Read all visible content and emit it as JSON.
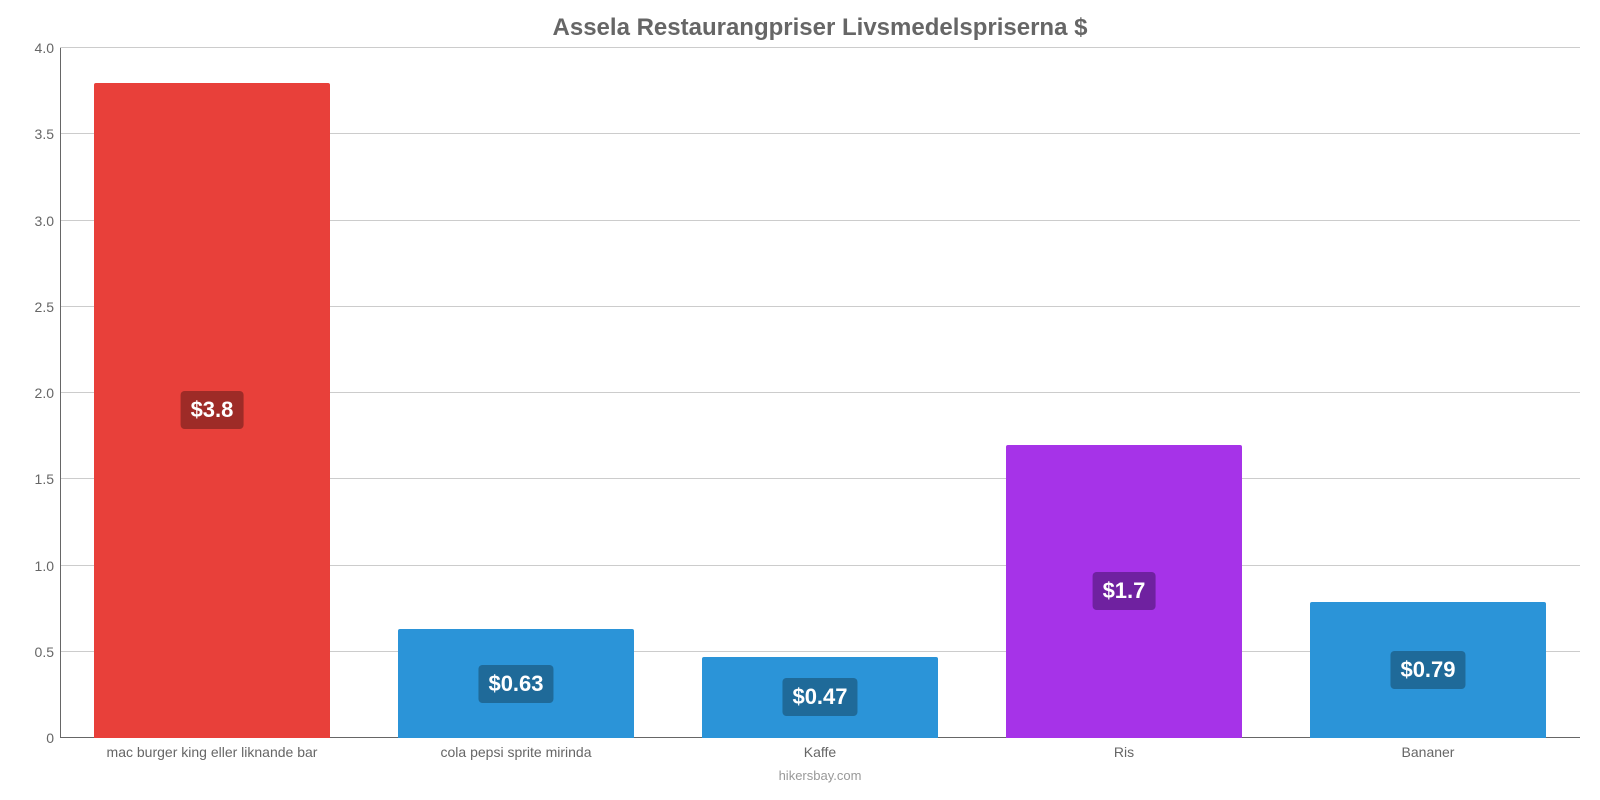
{
  "chart": {
    "type": "bar",
    "title": "Assela Restaurangpriser Livsmedelspriserna $",
    "title_fontsize": 24,
    "title_color": "#666666",
    "footer": "hikersbay.com",
    "footer_color": "#999999",
    "background_color": "#ffffff",
    "grid_color": "#cccccc",
    "axis_color": "#666666",
    "label_fontsize": 14,
    "value_label_fontsize": 22,
    "ylim": [
      0,
      4.0
    ],
    "ytick_step": 0.5,
    "yticks": [
      "0",
      "0.5",
      "1.0",
      "1.5",
      "2.0",
      "2.5",
      "3.0",
      "3.5",
      "4.0"
    ],
    "bar_width_pct": 15.5,
    "slot_width_pct": 20,
    "categories": [
      "mac burger king eller liknande bar",
      "cola pepsi sprite mirinda",
      "Kaffe",
      "Ris",
      "Bananer"
    ],
    "values": [
      3.8,
      0.63,
      0.47,
      1.7,
      0.79
    ],
    "value_labels": [
      "$3.8",
      "$0.63",
      "$0.47",
      "$1.7",
      "$0.79"
    ],
    "bar_colors": [
      "#e8403a",
      "#2b94d8",
      "#2b94d8",
      "#a633e8",
      "#2b94d8"
    ],
    "value_label_bg": [
      "#9e2b27",
      "#1f6a99",
      "#1f6a99",
      "#6f21a0",
      "#1f6a99"
    ],
    "value_label_color": "#ffffff"
  }
}
